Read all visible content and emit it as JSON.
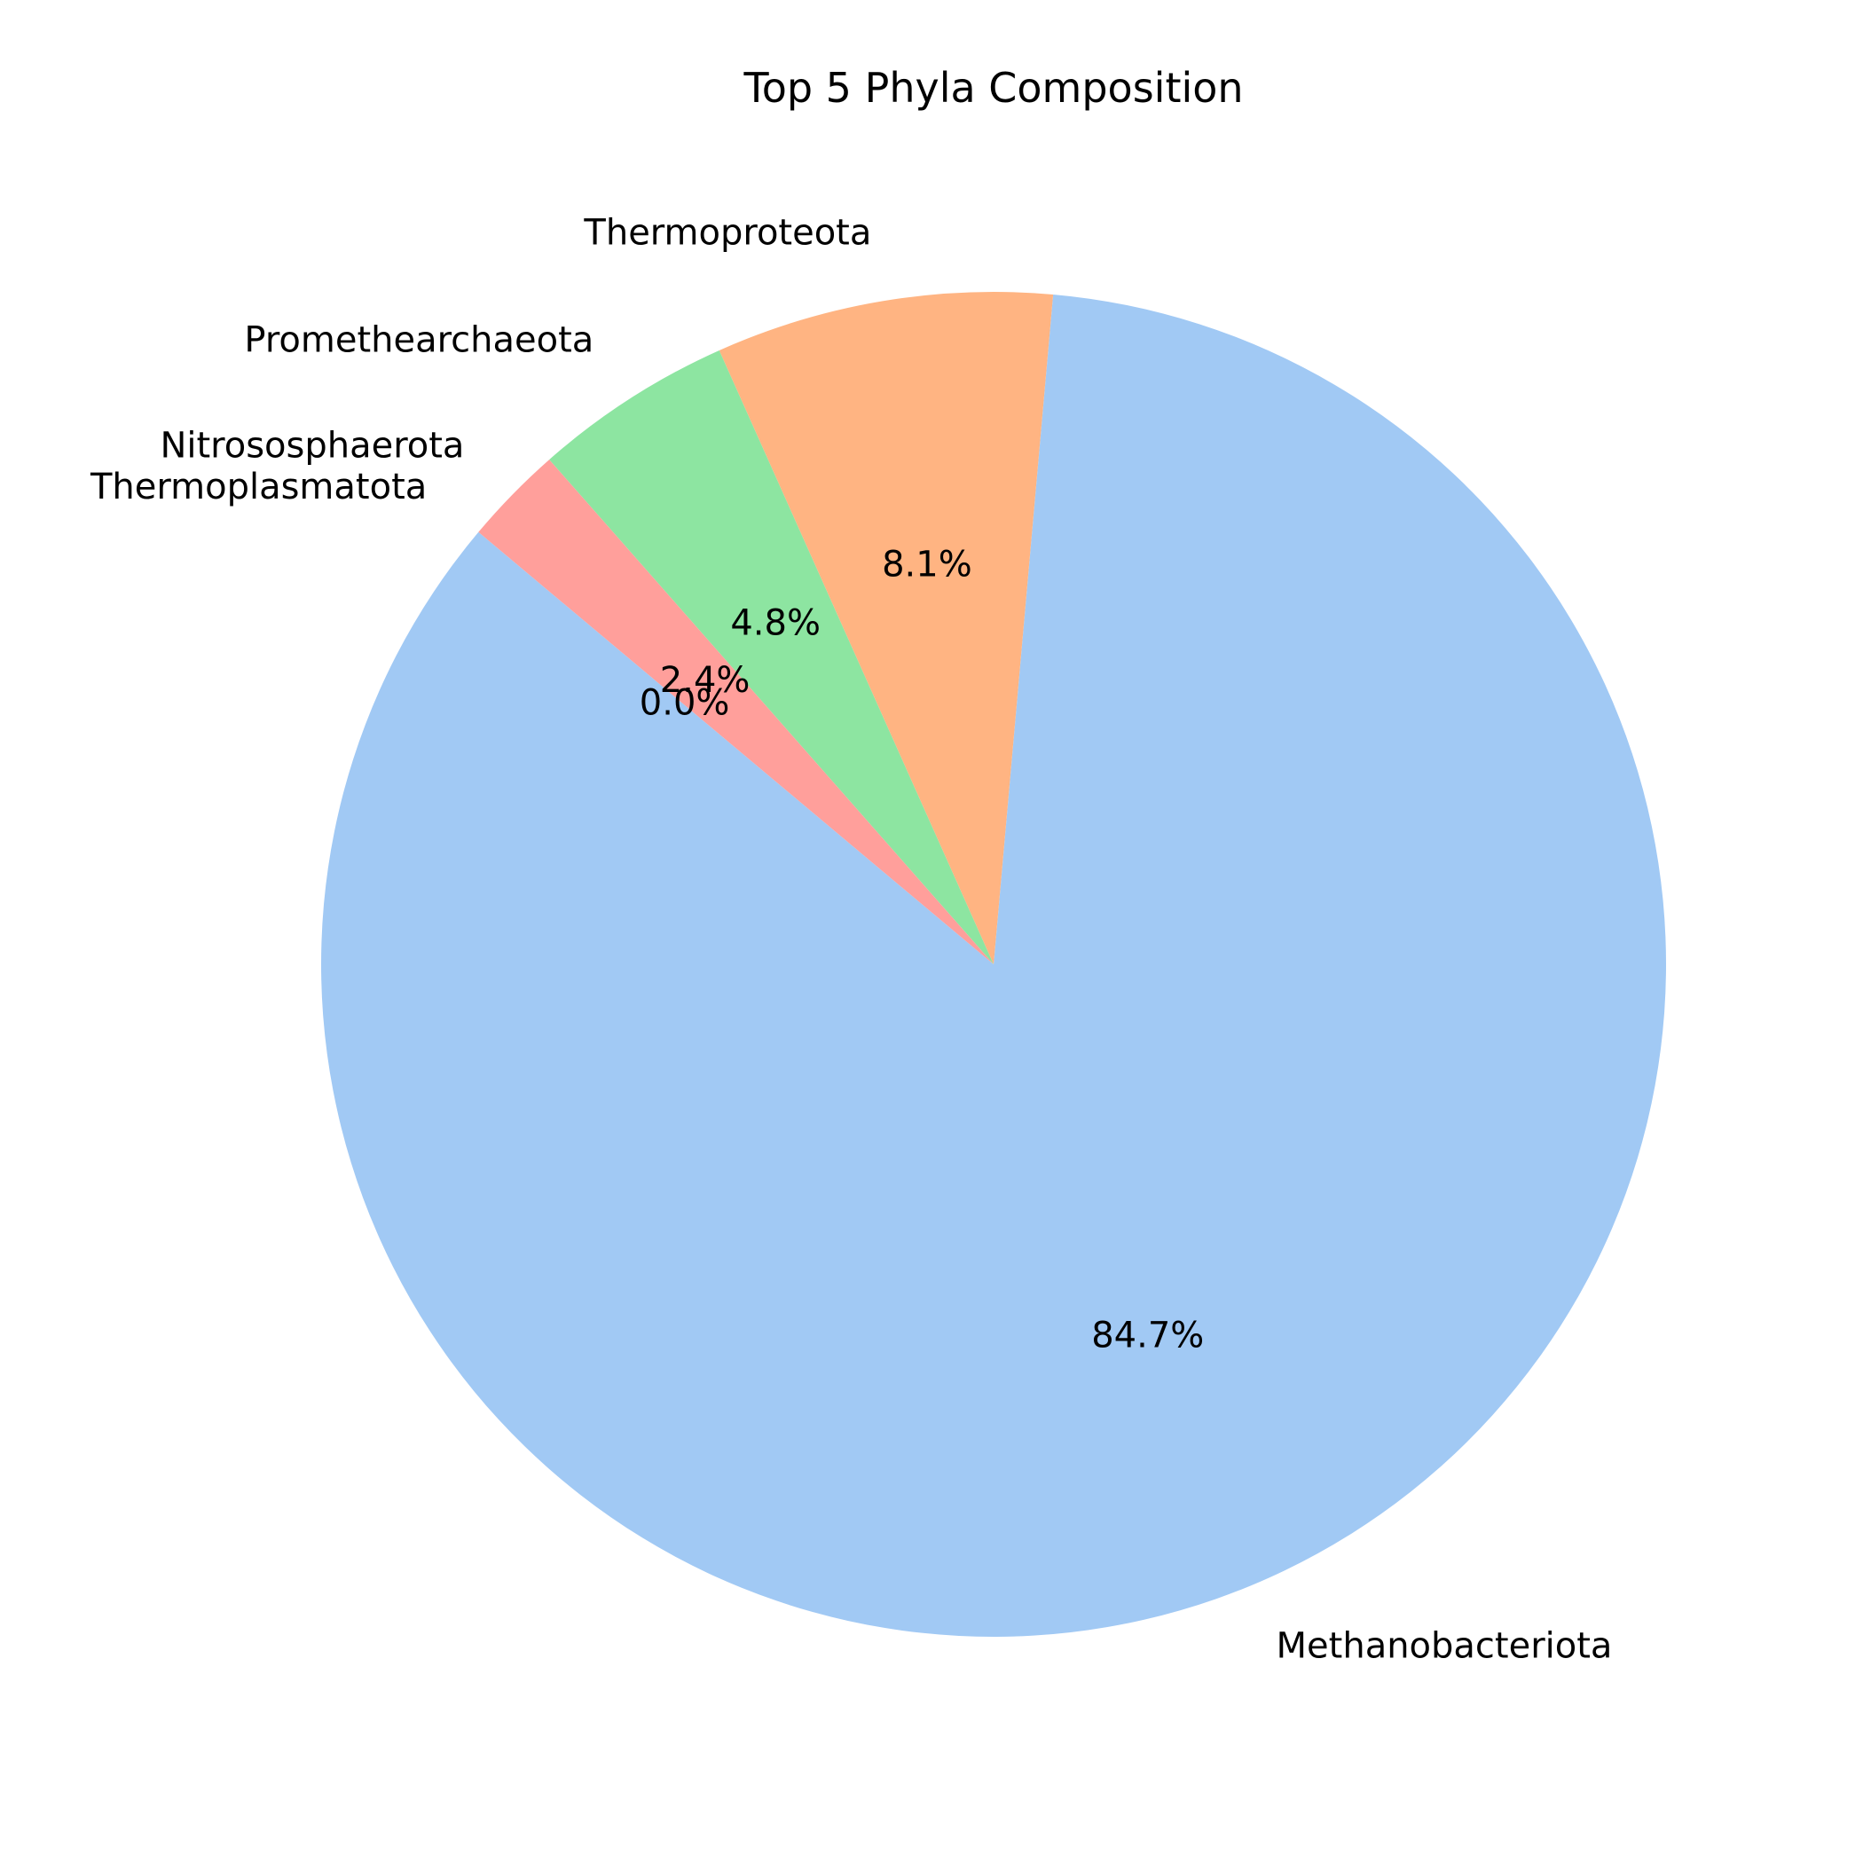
{
  "chart_data": {
    "type": "pie",
    "title": "Top 5 Phyla Composition",
    "slices": [
      {
        "label": "Methanobacteriota",
        "value": 84.7,
        "pct_label": "84.7%",
        "color": "#a1c9f4"
      },
      {
        "label": "Thermoproteota",
        "value": 8.1,
        "pct_label": "8.1%",
        "color": "#ffb482"
      },
      {
        "label": "Promethearchaeota",
        "value": 4.8,
        "pct_label": "4.8%",
        "color": "#8de5a1"
      },
      {
        "label": "Nitrososphaerota",
        "value": 2.4,
        "pct_label": "2.4%",
        "color": "#ff9f9b"
      },
      {
        "label": "Thermoplasmatota",
        "value": 0.0,
        "pct_label": "0.0%",
        "color": "#d0bbff"
      }
    ],
    "start_angle": 140,
    "direction": "counterclockwise"
  }
}
